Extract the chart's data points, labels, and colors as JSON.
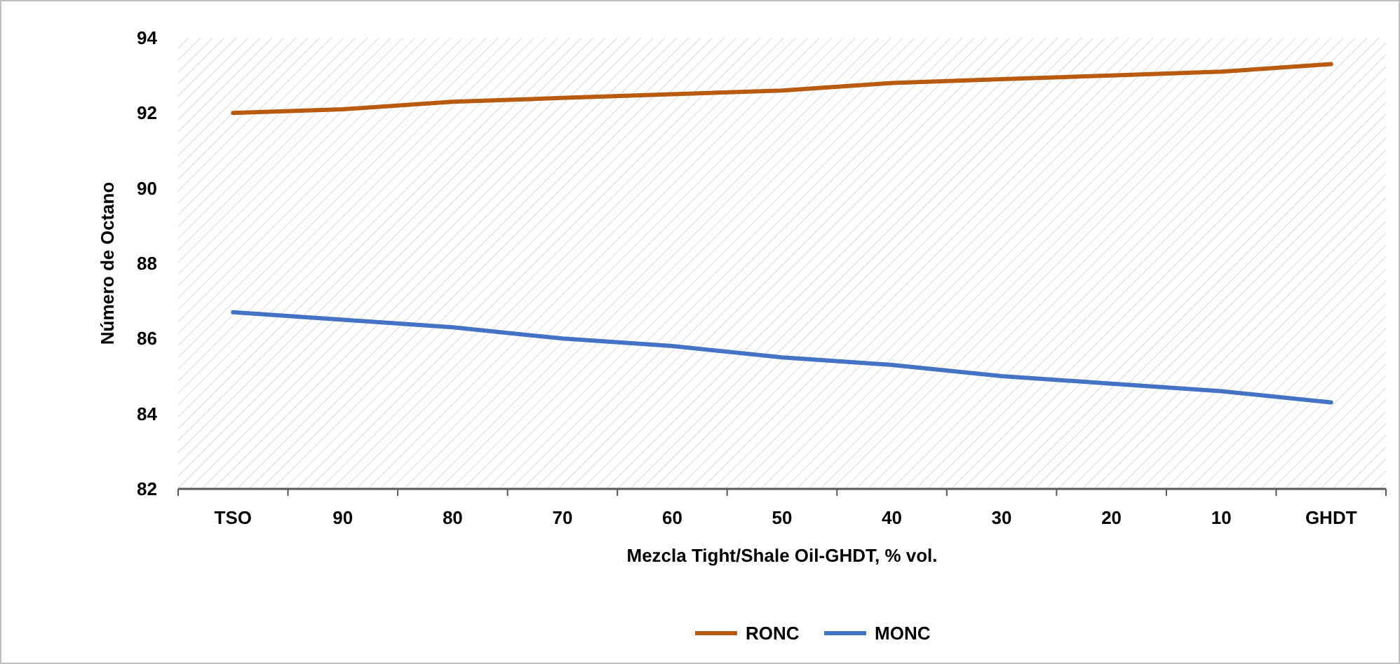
{
  "chart_data": {
    "type": "line",
    "xlabel": "Mezcla Tight/Shale Oil-GHDT, % vol.",
    "ylabel": "Número de Octano",
    "categories": [
      "TSO",
      "90",
      "80",
      "70",
      "60",
      "50",
      "40",
      "30",
      "20",
      "10",
      "GHDT"
    ],
    "series": [
      {
        "name": "RONC",
        "color": "#b85a10",
        "values": [
          92.0,
          92.1,
          92.3,
          92.4,
          92.5,
          92.6,
          92.8,
          92.9,
          93.0,
          93.1,
          93.3
        ]
      },
      {
        "name": "MONC",
        "color": "#4472c4",
        "values": [
          86.7,
          86.5,
          86.3,
          86.0,
          85.8,
          85.5,
          85.3,
          85.0,
          84.8,
          84.6,
          84.3
        ]
      }
    ],
    "ylim": [
      82,
      94
    ],
    "yticks": [
      82,
      84,
      86,
      88,
      90,
      92,
      94
    ],
    "grid": false,
    "legend": "bottom",
    "marker": "none",
    "line_style": "solid"
  }
}
